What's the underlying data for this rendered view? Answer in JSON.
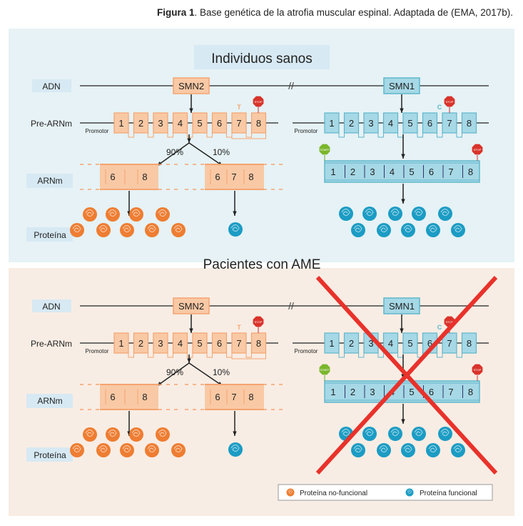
{
  "caption": {
    "label": "Figura 1",
    "text": ". Base genética de la atrofia muscular espinal. Adaptada de (EMA, 2017b)."
  },
  "colors": {
    "orange": "#f5a470",
    "orange_fill": "#f9c9a5",
    "teal": "#5fb7cc",
    "teal_fill": "#a6d8e6",
    "panel_top": "#e6f2f5",
    "panel_bottom": "#f8ede4",
    "title_box": "#d7e9f3",
    "red_x": "#e8322b",
    "protein_orange": "#ee7d32",
    "protein_teal": "#1b9cc4"
  },
  "row_labels": {
    "adn": "ADN",
    "pre_arnm": "Pre-ARNm",
    "arnm": "ARNm",
    "proteina": "Proteína"
  },
  "panels": [
    {
      "title": "Individuos sanos",
      "smn2": "SMN2",
      "smn1": "SMN1",
      "promotor": "Promotor",
      "smn2_nucleotide": "T",
      "smn1_nucleotide": "C",
      "start": "START",
      "stop": "STOP",
      "pct_90": "90%",
      "pct_10": "10%",
      "exons": [
        "1",
        "2",
        "3",
        "4",
        "5",
        "6",
        "7",
        "8"
      ],
      "mrna_short": [
        "6",
        "8"
      ],
      "mrna_full_smn2": [
        "6",
        "7",
        "8"
      ],
      "smn1_mrna": [
        "1",
        "2",
        "3",
        "4",
        "5",
        "6",
        "7",
        "8"
      ],
      "smn1_crossed": false
    },
    {
      "title": "Pacientes con AME",
      "smn2": "SMN2",
      "smn1": "SMN1",
      "promotor": "Promotor",
      "smn2_nucleotide": "T",
      "smn1_nucleotide": "C",
      "start": "START",
      "stop": "STOP",
      "pct_90": "90%",
      "pct_10": "10%",
      "exons": [
        "1",
        "2",
        "3",
        "4",
        "5",
        "6",
        "7",
        "8"
      ],
      "mrna_short": [
        "6",
        "8"
      ],
      "mrna_full_smn2": [
        "6",
        "7",
        "8"
      ],
      "smn1_mrna": [
        "1",
        "2",
        "3",
        "4",
        "5",
        "6",
        "7",
        "8"
      ],
      "smn1_crossed": true
    }
  ],
  "legend": {
    "non_functional": "Proteína no-funcional",
    "functional": "Proteína funcional"
  }
}
